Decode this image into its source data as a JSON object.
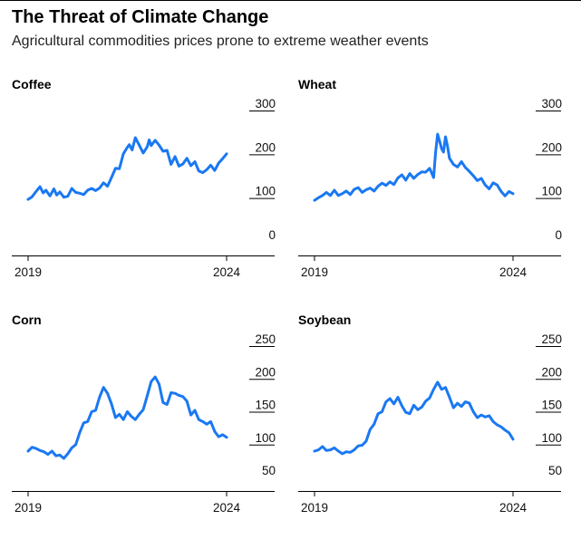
{
  "title": "The Threat of Climate Change",
  "subtitle": "Agricultural commodities prices prone to extreme weather events",
  "colors": {
    "line": "#1a78f2",
    "axis": "#000000",
    "tick": "#000000"
  },
  "chart_data": [
    {
      "type": "line",
      "title": "Coffee",
      "x_ticks": [
        "2019",
        "2024"
      ],
      "x_range": [
        2019.0,
        2024.0
      ],
      "y_ticks": [
        "300",
        "200",
        "100",
        "0"
      ],
      "ylim": [
        0,
        300
      ],
      "series": [
        {
          "x": [
            2019.0,
            2019.1,
            2019.2,
            2019.3,
            2019.38,
            2019.45,
            2019.55,
            2019.65,
            2019.72,
            2019.8,
            2019.9,
            2020.0,
            2020.1,
            2020.2,
            2020.3,
            2020.4,
            2020.5,
            2020.6,
            2020.7,
            2020.8,
            2020.9,
            2021.0,
            2021.1,
            2021.2,
            2021.3,
            2021.4,
            2021.5,
            2021.55,
            2021.62,
            2021.7,
            2021.8,
            2021.9,
            2022.0,
            2022.05,
            2022.1,
            2022.2,
            2022.3,
            2022.4,
            2022.5,
            2022.6,
            2022.7,
            2022.8,
            2022.9,
            2023.0,
            2023.1,
            2023.2,
            2023.3,
            2023.4,
            2023.5,
            2023.6,
            2023.7,
            2023.8,
            2023.9,
            2024.0
          ],
          "y": [
            97,
            103,
            115,
            126,
            112,
            118,
            105,
            121,
            107,
            114,
            102,
            104,
            122,
            113,
            111,
            108,
            118,
            122,
            117,
            123,
            135,
            127,
            147,
            168,
            167,
            201,
            216,
            222,
            210,
            238,
            221,
            203,
            217,
            233,
            220,
            232,
            221,
            207,
            209,
            177,
            195,
            173,
            178,
            191,
            174,
            183,
            162,
            158,
            165,
            175,
            163,
            180,
            190,
            201
          ]
        }
      ]
    },
    {
      "type": "line",
      "title": "Wheat",
      "x_ticks": [
        "2019",
        "2024"
      ],
      "x_range": [
        2019.0,
        2024.0
      ],
      "y_ticks": [
        "300",
        "200",
        "100",
        "0"
      ],
      "ylim": [
        0,
        300
      ],
      "series": [
        {
          "x": [
            2019.0,
            2019.1,
            2019.2,
            2019.3,
            2019.4,
            2019.5,
            2019.6,
            2019.7,
            2019.8,
            2019.9,
            2020.0,
            2020.1,
            2020.2,
            2020.3,
            2020.4,
            2020.5,
            2020.6,
            2020.7,
            2020.8,
            2020.9,
            2021.0,
            2021.1,
            2021.2,
            2021.3,
            2021.4,
            2021.5,
            2021.6,
            2021.7,
            2021.8,
            2021.9,
            2022.0,
            2022.05,
            2022.1,
            2022.15,
            2022.2,
            2022.25,
            2022.3,
            2022.35,
            2022.4,
            2022.5,
            2022.6,
            2022.7,
            2022.8,
            2022.9,
            2023.0,
            2023.1,
            2023.2,
            2023.3,
            2023.4,
            2023.5,
            2023.6,
            2023.7,
            2023.8,
            2023.9,
            2024.0
          ],
          "y": [
            95,
            101,
            106,
            113,
            106,
            118,
            106,
            110,
            116,
            108,
            120,
            124,
            113,
            119,
            123,
            116,
            127,
            134,
            129,
            137,
            131,
            146,
            153,
            141,
            156,
            145,
            154,
            160,
            159,
            168,
            147,
            205,
            246,
            230,
            213,
            205,
            240,
            219,
            191,
            177,
            171,
            183,
            170,
            161,
            151,
            140,
            145,
            130,
            121,
            135,
            130,
            115,
            105,
            115,
            110
          ]
        }
      ]
    },
    {
      "type": "line",
      "title": "Corn",
      "x_ticks": [
        "2019",
        "2024"
      ],
      "x_range": [
        2019.0,
        2024.0
      ],
      "y_ticks": [
        "250",
        "200",
        "150",
        "100",
        "50"
      ],
      "ylim": [
        50,
        250
      ],
      "series": [
        {
          "x": [
            2019.0,
            2019.1,
            2019.2,
            2019.3,
            2019.4,
            2019.5,
            2019.6,
            2019.7,
            2019.8,
            2019.9,
            2020.0,
            2020.1,
            2020.2,
            2020.3,
            2020.4,
            2020.5,
            2020.6,
            2020.7,
            2020.8,
            2020.9,
            2021.0,
            2021.1,
            2021.2,
            2021.3,
            2021.4,
            2021.5,
            2021.6,
            2021.7,
            2021.8,
            2021.9,
            2022.0,
            2022.1,
            2022.2,
            2022.3,
            2022.4,
            2022.5,
            2022.6,
            2022.7,
            2022.8,
            2022.9,
            2023.0,
            2023.1,
            2023.2,
            2023.3,
            2023.4,
            2023.5,
            2023.6,
            2023.7,
            2023.8,
            2023.9,
            2024.0
          ],
          "y": [
            90,
            96,
            94,
            91,
            89,
            85,
            90,
            83,
            84,
            79,
            86,
            95,
            100,
            118,
            133,
            135,
            150,
            152,
            172,
            187,
            178,
            162,
            141,
            146,
            138,
            150,
            143,
            138,
            146,
            153,
            174,
            196,
            203,
            192,
            164,
            161,
            179,
            178,
            175,
            173,
            166,
            145,
            152,
            138,
            135,
            131,
            135,
            120,
            112,
            115,
            111
          ]
        }
      ]
    },
    {
      "type": "line",
      "title": "Soybean",
      "x_ticks": [
        "2019",
        "2024"
      ],
      "x_range": [
        2019.0,
        2024.0
      ],
      "y_ticks": [
        "250",
        "200",
        "150",
        "100",
        "50"
      ],
      "ylim": [
        50,
        250
      ],
      "series": [
        {
          "x": [
            2019.0,
            2019.1,
            2019.2,
            2019.3,
            2019.4,
            2019.5,
            2019.6,
            2019.7,
            2019.8,
            2019.9,
            2020.0,
            2020.1,
            2020.2,
            2020.3,
            2020.4,
            2020.5,
            2020.6,
            2020.7,
            2020.8,
            2020.9,
            2021.0,
            2021.1,
            2021.2,
            2021.3,
            2021.4,
            2021.5,
            2021.6,
            2021.7,
            2021.8,
            2021.9,
            2022.0,
            2022.1,
            2022.2,
            2022.3,
            2022.4,
            2022.5,
            2022.6,
            2022.7,
            2022.8,
            2022.9,
            2023.0,
            2023.1,
            2023.2,
            2023.3,
            2023.4,
            2023.5,
            2023.6,
            2023.7,
            2023.8,
            2023.9,
            2024.0
          ],
          "y": [
            90,
            92,
            97,
            91,
            92,
            95,
            90,
            86,
            89,
            88,
            92,
            98,
            99,
            105,
            123,
            131,
            147,
            150,
            165,
            170,
            162,
            172,
            159,
            149,
            147,
            160,
            153,
            157,
            166,
            171,
            184,
            195,
            184,
            187,
            172,
            156,
            163,
            158,
            165,
            163,
            150,
            141,
            145,
            142,
            144,
            135,
            130,
            127,
            122,
            118,
            108
          ]
        }
      ]
    }
  ]
}
